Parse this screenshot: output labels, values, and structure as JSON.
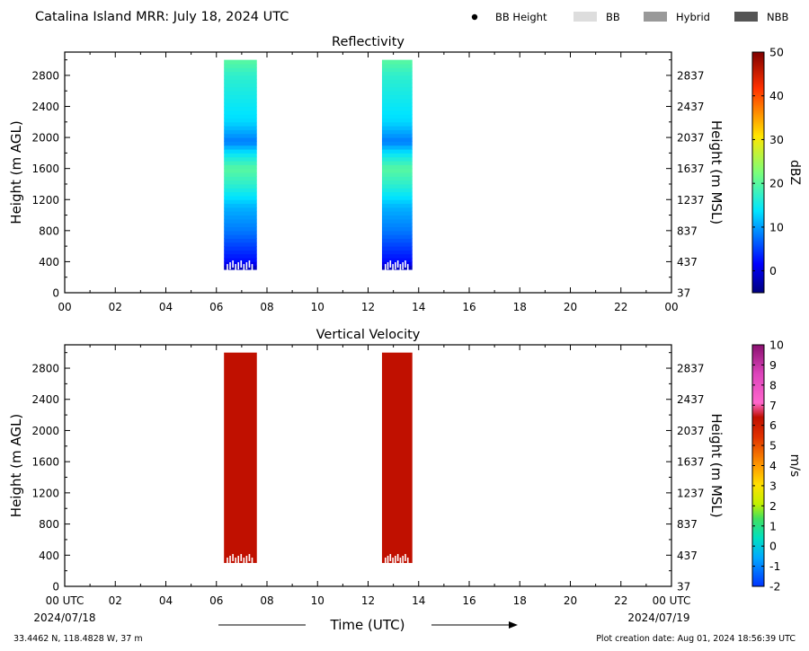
{
  "header": {
    "title": "Catalina Island MRR:  July 18, 2024 UTC",
    "legend": [
      {
        "label": "BB Height",
        "kind": "dot",
        "color": "#000000"
      },
      {
        "label": "BB",
        "kind": "box",
        "color": "#dddddd"
      },
      {
        "label": "Hybrid",
        "kind": "box",
        "color": "#999999"
      },
      {
        "label": "NBB",
        "kind": "box",
        "color": "#555555"
      }
    ]
  },
  "footer": {
    "xlabel": "Time (UTC)",
    "start_date": "2024/07/18",
    "end_date": "2024/07/19",
    "location": "33.4462 N, 118.4828 W, 37 m",
    "creation": "Plot creation date: Aug 01, 2024 18:56:39 UTC"
  },
  "chart_data": [
    {
      "type": "heatmap",
      "title": "Reflectivity",
      "ylabel": "Height (m AGL)",
      "ylabel_right": "Height (m MSL)",
      "x_ticks": [
        "00",
        "02",
        "04",
        "06",
        "08",
        "10",
        "12",
        "14",
        "16",
        "18",
        "20",
        "22",
        "00"
      ],
      "xlim": [
        0,
        24
      ],
      "ylim": [
        0,
        3100
      ],
      "y_ticks": [
        "0",
        "400",
        "800",
        "1200",
        "1600",
        "2000",
        "2400",
        "2800"
      ],
      "y_ticks_right": [
        "37",
        "437",
        "837",
        "1237",
        "1637",
        "2037",
        "2437",
        "2837"
      ],
      "colorbar": {
        "label": "dBZ",
        "min": -5,
        "max": 50,
        "ticks": [
          "0",
          "10",
          "20",
          "30",
          "40",
          "50"
        ],
        "colormap": "jet"
      },
      "segments": [
        {
          "t_start": 6.3,
          "t_end": 7.6,
          "height_min": 300,
          "height_max": 3000
        },
        {
          "t_start": 12.55,
          "t_end": 13.75,
          "height_min": 300,
          "height_max": 3000
        }
      ],
      "profile": [
        {
          "height": 300,
          "value": -3
        },
        {
          "height": 400,
          "value": 2
        },
        {
          "height": 600,
          "value": 5
        },
        {
          "height": 800,
          "value": 8
        },
        {
          "height": 1100,
          "value": 11
        },
        {
          "height": 1400,
          "value": 17
        },
        {
          "height": 1600,
          "value": 20
        },
        {
          "height": 1800,
          "value": 14
        },
        {
          "height": 1950,
          "value": 8
        },
        {
          "height": 2200,
          "value": 13
        },
        {
          "height": 2500,
          "value": 15
        },
        {
          "height": 2800,
          "value": 17
        },
        {
          "height": 3000,
          "value": 20
        }
      ]
    },
    {
      "type": "heatmap",
      "title": "Vertical Velocity",
      "ylabel": "Height (m AGL)",
      "ylabel_right": "Height (m MSL)",
      "x_ticks": [
        "00 UTC",
        "02",
        "04",
        "06",
        "08",
        "10",
        "12",
        "14",
        "16",
        "18",
        "20",
        "22",
        "00 UTC"
      ],
      "xlim": [
        0,
        24
      ],
      "ylim": [
        0,
        3100
      ],
      "y_ticks": [
        "0",
        "400",
        "800",
        "1200",
        "1600",
        "2000",
        "2400",
        "2800"
      ],
      "y_ticks_right": [
        "37",
        "437",
        "837",
        "1237",
        "1637",
        "2037",
        "2437",
        "2837"
      ],
      "colorbar": {
        "label": "m/s",
        "min": -2,
        "max": 10,
        "ticks": [
          "-2",
          "-1",
          "0",
          "1",
          "2",
          "3",
          "4",
          "5",
          "6",
          "7",
          "8",
          "9",
          "10"
        ],
        "colormap": "velocity"
      },
      "segments": [
        {
          "t_start": 6.3,
          "t_end": 7.6,
          "height_min": 300,
          "height_max": 3000
        },
        {
          "t_start": 12.55,
          "t_end": 13.75,
          "height_min": 300,
          "height_max": 3000
        }
      ],
      "value": 6.5,
      "value_color": "#c01000"
    }
  ]
}
